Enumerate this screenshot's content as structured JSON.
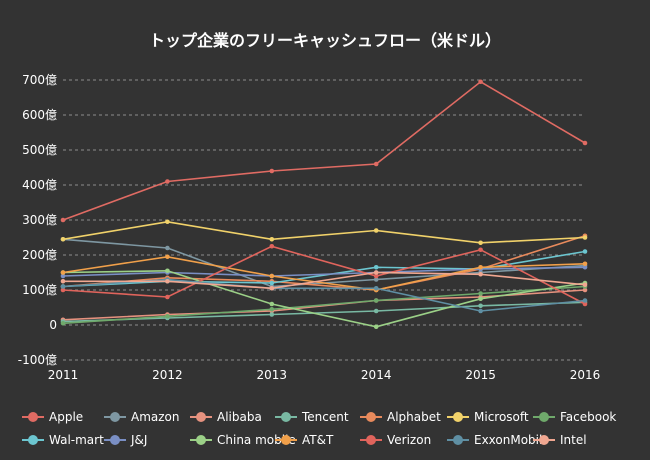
{
  "chart_data": {
    "type": "line",
    "title": "トップ企業のフリーキャッシュフロー（米ドル）",
    "categories": [
      "2011",
      "2012",
      "2013",
      "2014",
      "2015",
      "2016"
    ],
    "ylim": [
      -100,
      700
    ],
    "y_ticks": [
      -100,
      0,
      100,
      200,
      300,
      400,
      500,
      600,
      700
    ],
    "y_tick_labels": [
      "-100億",
      "0",
      "100億",
      "200億",
      "300億",
      "400億",
      "500億",
      "600億",
      "700億"
    ],
    "grid": true,
    "legend_position": "bottom",
    "series": [
      {
        "name": "Apple",
        "color": "#e06b63",
        "values": [
          300,
          410,
          440,
          460,
          695,
          520
        ]
      },
      {
        "name": "Amazon",
        "color": "#7e97a2",
        "values": [
          245,
          220,
          110,
          130,
          150,
          170
        ]
      },
      {
        "name": "Alibaba",
        "color": "#e6927f",
        "values": [
          15,
          30,
          40,
          70,
          80,
          100
        ]
      },
      {
        "name": "Tencent",
        "color": "#79b9a3",
        "values": [
          10,
          20,
          30,
          40,
          55,
          65
        ]
      },
      {
        "name": "Alphabet",
        "color": "#e88a5c",
        "values": [
          110,
          135,
          125,
          100,
          160,
          255
        ]
      },
      {
        "name": "Microsoft",
        "color": "#f1d26a",
        "values": [
          245,
          295,
          245,
          270,
          235,
          250
        ]
      },
      {
        "name": "Facebook",
        "color": "#6fa96b",
        "values": [
          5,
          25,
          45,
          70,
          90,
          110
        ]
      },
      {
        "name": "Wal-mart",
        "color": "#6cc6d0",
        "values": [
          110,
          125,
          120,
          165,
          160,
          210
        ]
      },
      {
        "name": "J&J",
        "color": "#7a8fc4",
        "values": [
          140,
          150,
          140,
          150,
          160,
          165
        ]
      },
      {
        "name": "China mobile",
        "color": "#9bd087",
        "values": [
          150,
          155,
          60,
          -5,
          75,
          120
        ]
      },
      {
        "name": "AT&T",
        "color": "#f1a04a",
        "values": [
          150,
          195,
          140,
          100,
          165,
          175
        ]
      },
      {
        "name": "Verizon",
        "color": "#e0645c",
        "values": [
          100,
          80,
          225,
          140,
          215,
          60
        ]
      },
      {
        "name": "ExxonMobil",
        "color": "#5f8fa3",
        "values": [
          110,
          130,
          105,
          105,
          40,
          70
        ]
      },
      {
        "name": "Intel",
        "color": "#f0a791",
        "values": [
          125,
          125,
          105,
          150,
          145,
          115
        ]
      }
    ]
  }
}
